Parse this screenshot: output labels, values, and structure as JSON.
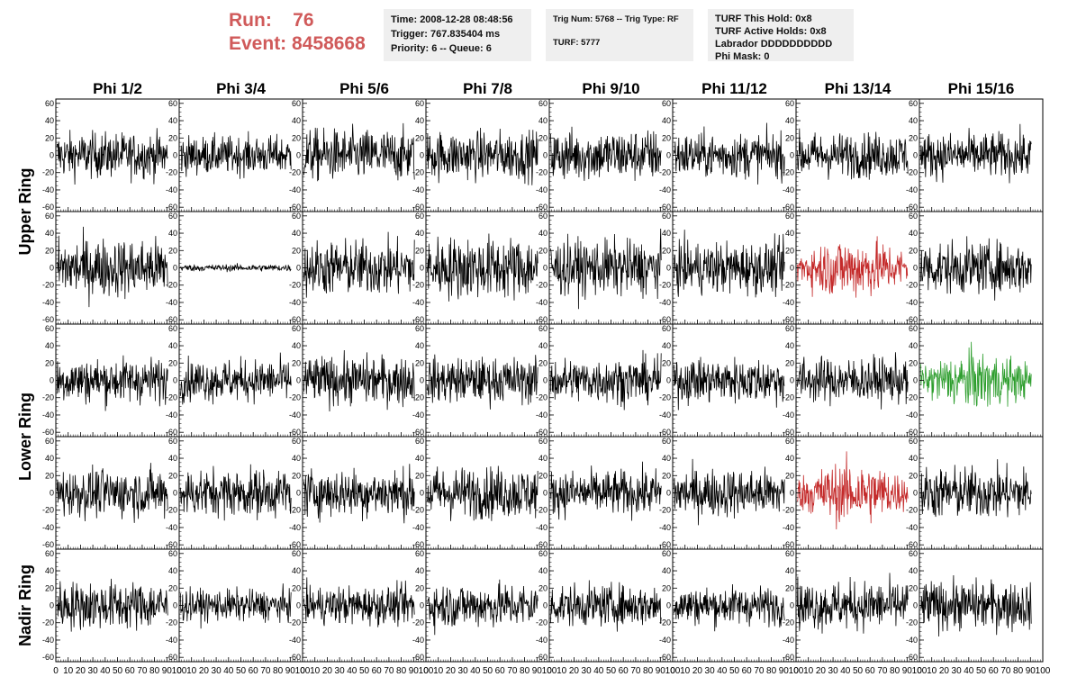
{
  "header": {
    "run_label": "Run:",
    "run_value": "76",
    "event_label": "Event:",
    "event_value": "8458668",
    "time_line": "Time: 2008-12-28 08:48:56",
    "trigger_line": "Trigger: 767.835404 ms",
    "priority_line": "Priority: 6 -- Queue: 6",
    "trig_line": "Trig Num: 5768 -- Trig Type: RF",
    "turf_line": "TURF: 5777",
    "turf_hold_line": "TURF This Hold: 0x8",
    "turf_active_line": "TURF Active Holds: 0x8",
    "labrador_line": "Labrador DDDDDDDDDD",
    "phi_mask_line": "Phi Mask: 0"
  },
  "colors": {
    "normal": "#000000",
    "triggered": "#c42a2a",
    "highlight": "#2e9e2e",
    "header_text": "#d05a5a"
  },
  "chart_data": {
    "type": "line",
    "columns": [
      "Phi 1/2",
      "Phi 3/4",
      "Phi 5/6",
      "Phi 7/8",
      "Phi 9/10",
      "Phi 11/12",
      "Phi 13/14",
      "Phi 15/16"
    ],
    "ring_labels": [
      {
        "text": "Upper Ring",
        "rows": [
          0,
          1
        ]
      },
      {
        "text": "Lower Ring",
        "rows": [
          2,
          3
        ]
      },
      {
        "text": "Nadir Ring",
        "rows": [
          4
        ]
      }
    ],
    "ylim": [
      -65,
      65
    ],
    "xlim": [
      0,
      100
    ],
    "yticks": [
      -60,
      -40,
      -20,
      0,
      20,
      40,
      60
    ],
    "xticks": [
      0,
      10,
      20,
      30,
      40,
      50,
      60,
      70,
      80,
      90,
      100
    ],
    "xtick_labels": [
      "0",
      "10",
      "20",
      "30",
      "40",
      "50",
      "60",
      "70",
      "80",
      "90",
      "100"
    ],
    "panels": [
      [
        {
          "amp": 13,
          "color": "normal"
        },
        {
          "amp": 11,
          "color": "normal"
        },
        {
          "amp": 15,
          "color": "normal"
        },
        {
          "amp": 14,
          "color": "normal"
        },
        {
          "amp": 15,
          "color": "normal"
        },
        {
          "amp": 13,
          "color": "normal"
        },
        {
          "amp": 13,
          "color": "normal"
        },
        {
          "amp": 13,
          "color": "normal"
        }
      ],
      [
        {
          "amp": 17,
          "color": "normal"
        },
        {
          "amp": 2,
          "color": "normal"
        },
        {
          "amp": 16,
          "color": "normal"
        },
        {
          "amp": 18,
          "color": "normal"
        },
        {
          "amp": 16,
          "color": "normal"
        },
        {
          "amp": 15,
          "color": "normal"
        },
        {
          "amp": 15,
          "color": "triggered"
        },
        {
          "amp": 15,
          "color": "normal"
        }
      ],
      [
        {
          "amp": 13,
          "color": "normal"
        },
        {
          "amp": 12,
          "color": "normal"
        },
        {
          "amp": 14,
          "color": "normal"
        },
        {
          "amp": 13,
          "color": "normal"
        },
        {
          "amp": 13,
          "color": "normal"
        },
        {
          "amp": 13,
          "color": "normal"
        },
        {
          "amp": 13,
          "color": "normal"
        },
        {
          "amp": 14,
          "color": "highlight"
        }
      ],
      [
        {
          "amp": 14,
          "color": "normal"
        },
        {
          "amp": 14,
          "color": "normal"
        },
        {
          "amp": 14,
          "color": "normal"
        },
        {
          "amp": 15,
          "color": "normal"
        },
        {
          "amp": 13,
          "color": "normal"
        },
        {
          "amp": 14,
          "color": "normal"
        },
        {
          "amp": 15,
          "color": "triggered"
        },
        {
          "amp": 15,
          "color": "normal"
        }
      ],
      [
        {
          "amp": 14,
          "color": "normal"
        },
        {
          "amp": 9,
          "color": "normal"
        },
        {
          "amp": 11,
          "color": "normal"
        },
        {
          "amp": 13,
          "color": "normal"
        },
        {
          "amp": 12,
          "color": "normal"
        },
        {
          "amp": 11,
          "color": "normal"
        },
        {
          "amp": 14,
          "color": "normal"
        },
        {
          "amp": 14,
          "color": "normal"
        }
      ]
    ]
  }
}
